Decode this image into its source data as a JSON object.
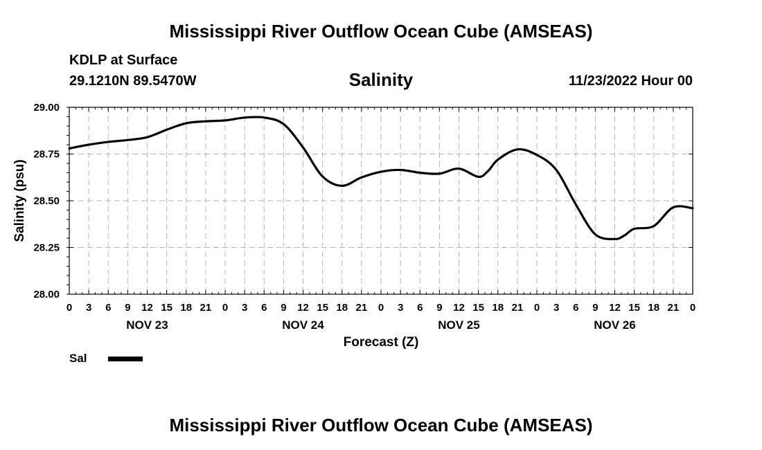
{
  "header": {
    "main_title": "Mississippi River Outflow Ocean Cube (AMSEAS)",
    "station": "KDLP at Surface",
    "coordinates": "29.1210N  89.5470W",
    "chart_title": "Salinity",
    "datetime": "11/23/2022 Hour 00"
  },
  "footer": {
    "title": "Mississippi River Outflow Ocean Cube (AMSEAS)"
  },
  "legend": {
    "label": "Sal"
  },
  "chart_data": {
    "type": "line",
    "title": "Salinity",
    "xlabel": "Forecast (Z)",
    "ylabel": "Salinity (psu)",
    "ylim": [
      28.0,
      29.0
    ],
    "xlim": [
      0,
      96
    ],
    "yticks": [
      "28.00",
      "28.25",
      "28.50",
      "28.75",
      "29.00"
    ],
    "xtick_labels": [
      "0",
      "3",
      "6",
      "9",
      "12",
      "15",
      "18",
      "21",
      "0",
      "3",
      "6",
      "9",
      "12",
      "15",
      "18",
      "21",
      "0",
      "3",
      "6",
      "9",
      "12",
      "15",
      "18",
      "21",
      "0",
      "3",
      "6",
      "9",
      "12",
      "15",
      "18",
      "21",
      "0"
    ],
    "date_labels": [
      {
        "hour": 12,
        "label": "NOV 23"
      },
      {
        "hour": 36,
        "label": "NOV 24"
      },
      {
        "hour": 60,
        "label": "NOV 25"
      },
      {
        "hour": 84,
        "label": "NOV 26"
      }
    ],
    "grid": true,
    "legend_position": "bottom-left",
    "series": [
      {
        "name": "Sal",
        "color": "#000000",
        "x": [
          0,
          3,
          6,
          9,
          12,
          15,
          18,
          21,
          24,
          27,
          30,
          33,
          36,
          39,
          42,
          45,
          48,
          51,
          54,
          57,
          60,
          63,
          64.5,
          66,
          69,
          72,
          75,
          78,
          81,
          84,
          85.5,
          87,
          90,
          93,
          96
        ],
        "y": [
          28.78,
          28.8,
          28.815,
          28.825,
          28.84,
          28.88,
          28.915,
          28.925,
          28.93,
          28.945,
          28.945,
          28.91,
          28.785,
          28.63,
          28.58,
          28.625,
          28.655,
          28.665,
          28.65,
          28.645,
          28.672,
          28.628,
          28.66,
          28.72,
          28.775,
          28.745,
          28.665,
          28.48,
          28.32,
          28.295,
          28.315,
          28.35,
          28.365,
          28.465,
          28.46
        ]
      }
    ]
  }
}
